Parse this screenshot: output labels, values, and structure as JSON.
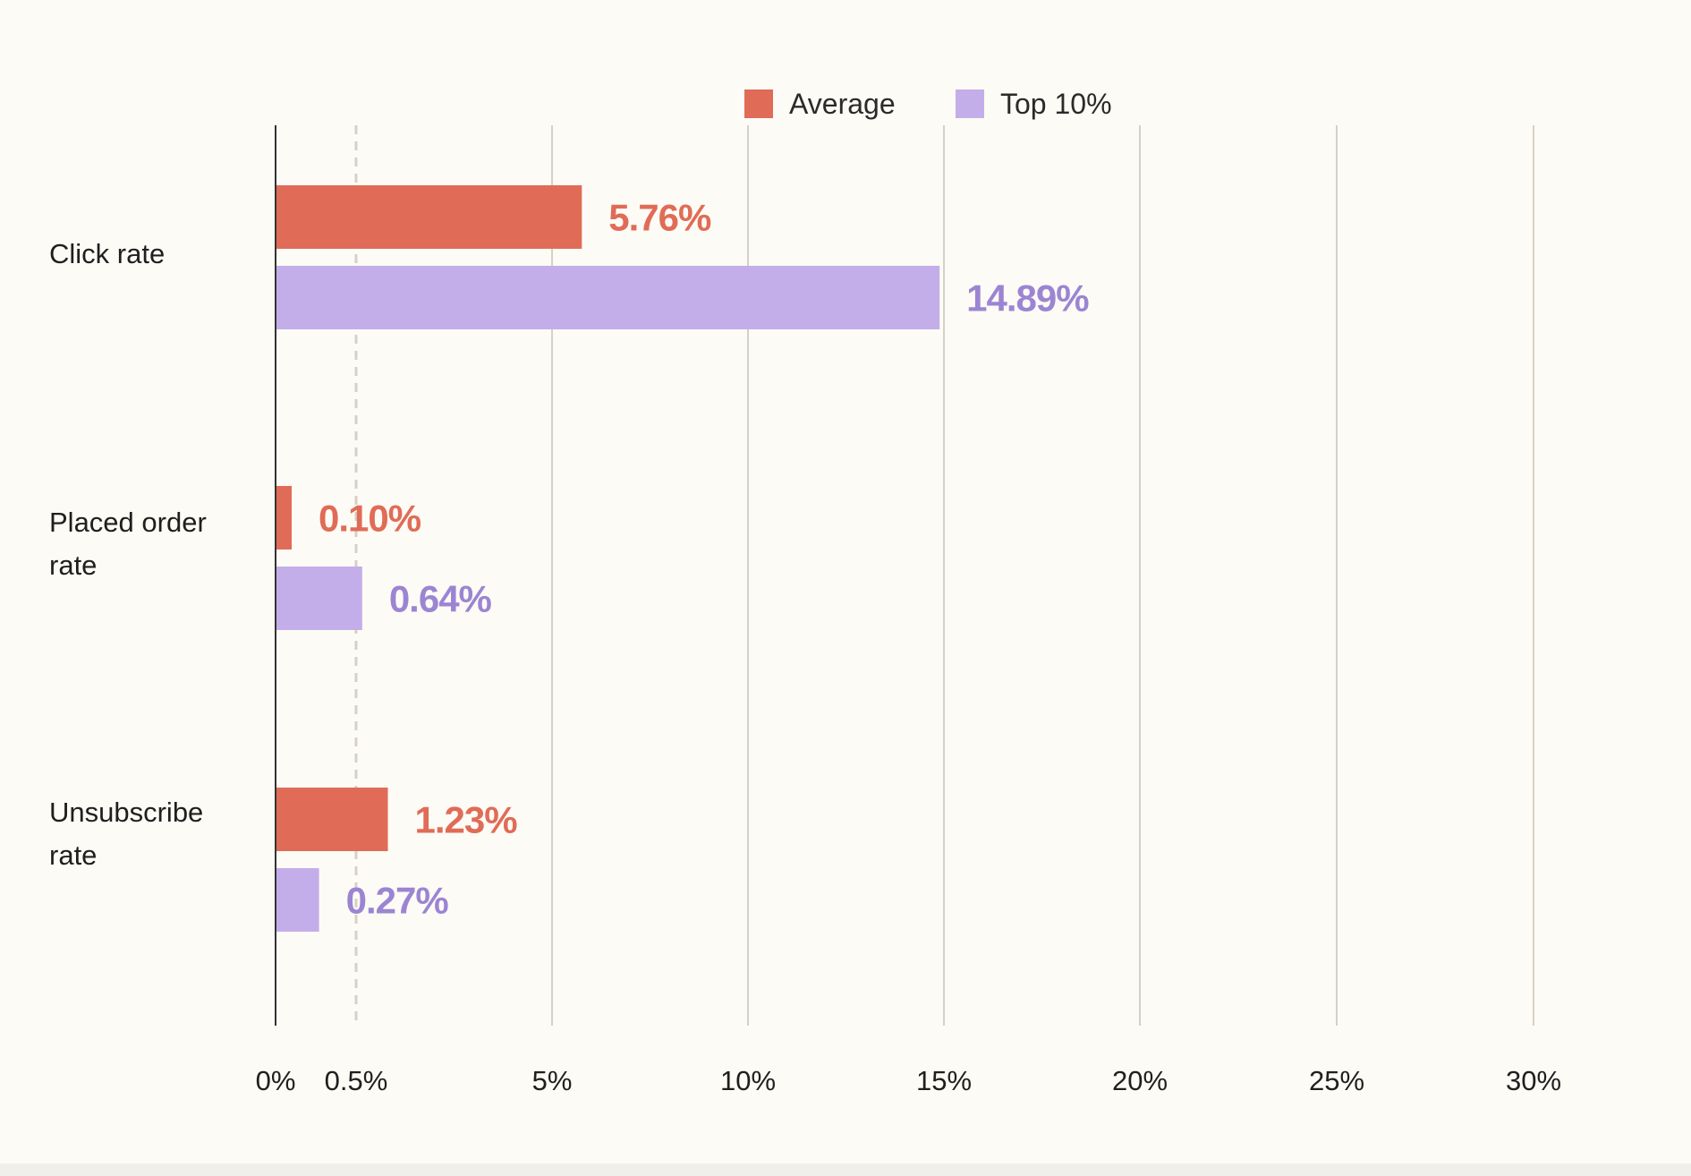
{
  "colors": {
    "background": "#fdfbf5",
    "average": "#e06c57",
    "top10": "#c4aeea",
    "top10_text": "#9b85d3",
    "grid": "#d6d1c6",
    "axis": "#333333"
  },
  "chart_data": {
    "type": "bar",
    "orientation": "horizontal",
    "title": "",
    "xlabel": "",
    "ylabel": "",
    "categories": [
      [
        "Click rate"
      ],
      [
        "Placed order",
        "rate"
      ],
      [
        "Unsubscribe",
        "rate"
      ]
    ],
    "series": [
      {
        "name": "Average",
        "values": [
          5.76,
          0.1,
          1.23
        ],
        "labels": [
          "5.76%",
          "0.10%",
          "1.23%"
        ]
      },
      {
        "name": "Top 10%",
        "values": [
          14.89,
          0.64,
          0.27
        ],
        "labels": [
          "14.89%",
          "0.64%",
          "0.27%"
        ]
      }
    ],
    "axis_scale": "piecewise",
    "axis_breakpoints": [
      0,
      0.5,
      5,
      10,
      15,
      20,
      25,
      30
    ],
    "ticks": [
      {
        "value": 0,
        "label": "0%"
      },
      {
        "value": 0.5,
        "label": "0.5%"
      },
      {
        "value": 5,
        "label": "5%"
      },
      {
        "value": 10,
        "label": "10%"
      },
      {
        "value": 15,
        "label": "15%"
      },
      {
        "value": 20,
        "label": "20%"
      },
      {
        "value": 25,
        "label": "25%"
      },
      {
        "value": 30,
        "label": "30%"
      }
    ],
    "reference_line": {
      "value": 0.5,
      "style": "dashed"
    },
    "xlim": [
      0,
      30
    ],
    "grid": true,
    "legend_position": "top-center"
  }
}
